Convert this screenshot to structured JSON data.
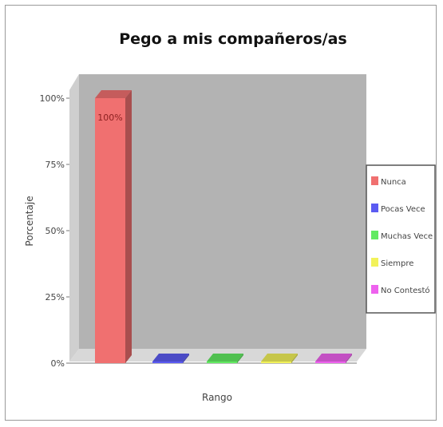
{
  "chart_data": {
    "type": "bar",
    "title": "Pego a mis compañeros/as",
    "xlabel": "Rango",
    "ylabel": "Porcentaje",
    "ylim": [
      0,
      100
    ],
    "y_ticks": [
      "0%",
      "25%",
      "50%",
      "75%",
      "100%"
    ],
    "y_tick_values": [
      0,
      25,
      50,
      75,
      100
    ],
    "categories": [
      "Nunca",
      "Pocas Veces",
      "Muchas Veces",
      "Siempre",
      "No Contestó"
    ],
    "values": [
      100,
      0,
      0,
      0,
      0
    ],
    "data_labels": [
      "100%",
      "",
      "",
      "",
      ""
    ],
    "legend": [
      {
        "label": "Nunca",
        "color": "#f07070"
      },
      {
        "label": "Pocas Vece",
        "color": "#5b5bf2"
      },
      {
        "label": "Muchas Vece",
        "color": "#62ea62"
      },
      {
        "label": "Siempre",
        "color": "#f2f25a"
      },
      {
        "label": "No Contestó",
        "color": "#ee62ee"
      }
    ],
    "legend_position": "right",
    "plot_background": "#b3b3b3",
    "grid": false
  }
}
